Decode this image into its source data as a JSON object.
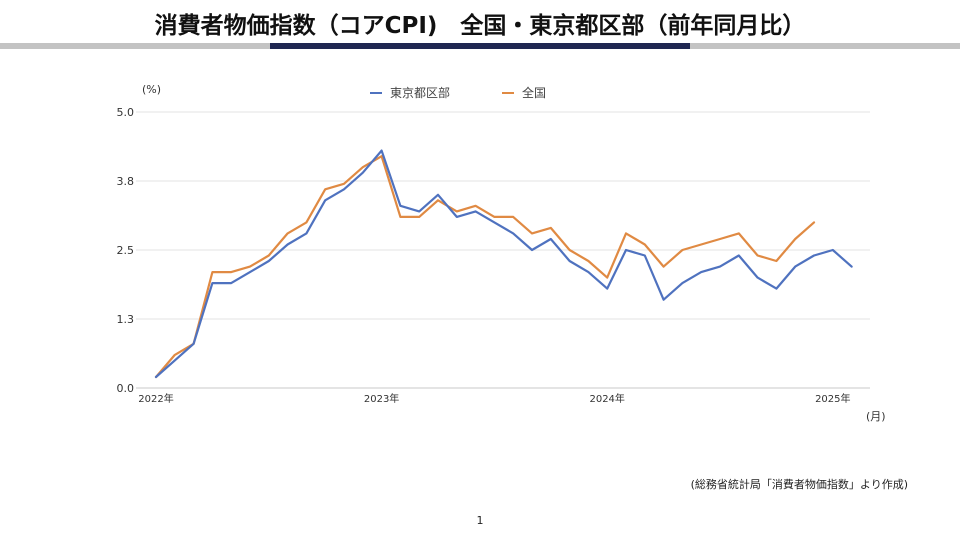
{
  "title": "消費者物価指数（コアCPI)　全国・東京都区部（前年同月比）",
  "unit_label": "(%)",
  "month_label": "(月)",
  "source_note": "(総務省統計局「消費者物価指数」より作成)",
  "page_number": "1",
  "colors": {
    "tokyo": "#4f72bf",
    "national": "#e08a43",
    "grid": "#e3e3e3",
    "axis": "#c8c8c8"
  },
  "chart_data": {
    "type": "line",
    "title": "",
    "xlabel": "(月)",
    "ylabel": "(%)",
    "ylim": [
      0.0,
      5.0
    ],
    "yticks": [
      "0.0",
      "1.3",
      "2.5",
      "3.8",
      "5.0"
    ],
    "ytick_values": [
      0.0,
      1.25,
      2.5,
      3.75,
      5.0
    ],
    "xtick_labels": [
      "2022年",
      "2023年",
      "2024年",
      "2025年"
    ],
    "xtick_indices": [
      0,
      12,
      24,
      36
    ],
    "grid": "horizontal",
    "legend": "top-center",
    "series": [
      {
        "name": "東京都区部",
        "color": "#4f72bf",
        "values": [
          0.2,
          0.5,
          0.8,
          1.9,
          1.9,
          2.1,
          2.3,
          2.6,
          2.8,
          3.4,
          3.6,
          3.9,
          4.3,
          3.3,
          3.2,
          3.5,
          3.1,
          3.2,
          3.0,
          2.8,
          2.5,
          2.7,
          2.3,
          2.1,
          1.8,
          2.5,
          2.4,
          1.6,
          1.9,
          2.1,
          2.2,
          2.4,
          2.0,
          1.8,
          2.2,
          2.4,
          2.5,
          2.2
        ]
      },
      {
        "name": "全国",
        "color": "#e08a43",
        "values": [
          0.2,
          0.6,
          0.8,
          2.1,
          2.1,
          2.2,
          2.4,
          2.8,
          3.0,
          3.6,
          3.7,
          4.0,
          4.2,
          3.1,
          3.1,
          3.4,
          3.2,
          3.3,
          3.1,
          3.1,
          2.8,
          2.9,
          2.5,
          2.3,
          2.0,
          2.8,
          2.6,
          2.2,
          2.5,
          2.6,
          2.7,
          2.8,
          2.4,
          2.3,
          2.7,
          3.0
        ]
      }
    ]
  }
}
